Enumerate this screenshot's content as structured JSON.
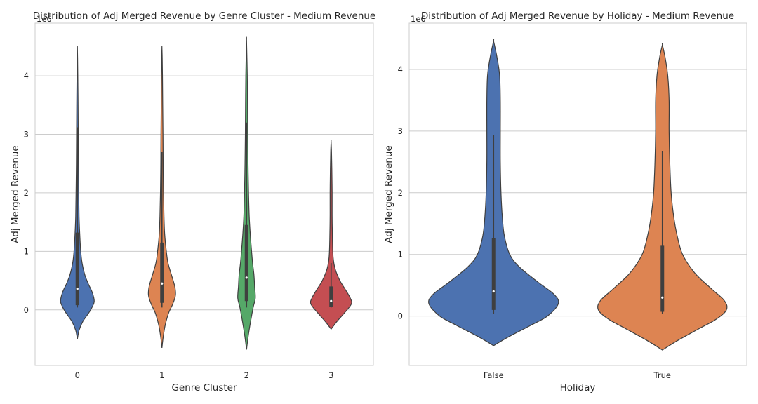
{
  "chart_data": [
    {
      "type": "violin",
      "title": "Distribution of Adj Merged Revenue by Genre Cluster - Medium Revenue",
      "xlabel": "Genre Cluster",
      "ylabel": "Adj Merged Revenue",
      "y_offset_label": "1e6",
      "ylim": [
        -0.95,
        4.9
      ],
      "yticks": [
        0,
        1,
        2,
        3,
        4
      ],
      "grid": "horizontal",
      "categories": [
        "0",
        "1",
        "2",
        "3"
      ],
      "colors": [
        "#4c72b0",
        "#dd8452",
        "#55a868",
        "#c44e52"
      ],
      "violins": [
        {
          "category": "0",
          "stats": {
            "q1": 0.08,
            "median": 0.36,
            "q3": 1.32,
            "whisker_low": 0.04,
            "whisker_high": 3.12
          },
          "density": [
            [
              -0.5,
              0
            ],
            [
              -0.35,
              0.05
            ],
            [
              -0.2,
              0.16
            ],
            [
              -0.05,
              0.34
            ],
            [
              0.05,
              0.44
            ],
            [
              0.15,
              0.5
            ],
            [
              0.3,
              0.44
            ],
            [
              0.45,
              0.32
            ],
            [
              0.6,
              0.22
            ],
            [
              0.8,
              0.14
            ],
            [
              1.0,
              0.1
            ],
            [
              1.3,
              0.07
            ],
            [
              1.6,
              0.05
            ],
            [
              2.0,
              0.04
            ],
            [
              2.5,
              0.03
            ],
            [
              3.0,
              0.025
            ],
            [
              3.5,
              0.02
            ],
            [
              4.0,
              0.012
            ],
            [
              4.3,
              0.006
            ],
            [
              4.48,
              0
            ]
          ]
        },
        {
          "category": "1",
          "stats": {
            "q1": 0.12,
            "median": 0.45,
            "q3": 1.15,
            "whisker_low": 0.04,
            "whisker_high": 2.7
          },
          "density": [
            [
              -0.65,
              0
            ],
            [
              -0.45,
              0.04
            ],
            [
              -0.25,
              0.1
            ],
            [
              -0.05,
              0.2
            ],
            [
              0.1,
              0.32
            ],
            [
              0.25,
              0.4
            ],
            [
              0.4,
              0.38
            ],
            [
              0.6,
              0.28
            ],
            [
              0.8,
              0.18
            ],
            [
              1.0,
              0.13
            ],
            [
              1.3,
              0.08
            ],
            [
              1.6,
              0.06
            ],
            [
              2.0,
              0.045
            ],
            [
              2.5,
              0.035
            ],
            [
              3.0,
              0.03
            ],
            [
              3.5,
              0.022
            ],
            [
              4.0,
              0.015
            ],
            [
              4.3,
              0.008
            ],
            [
              4.48,
              0
            ]
          ]
        },
        {
          "category": "2",
          "stats": {
            "q1": 0.15,
            "median": 0.55,
            "q3": 1.45,
            "whisker_low": 0.04,
            "whisker_high": 3.2
          },
          "density": [
            [
              -0.68,
              0
            ],
            [
              -0.45,
              0.05
            ],
            [
              -0.2,
              0.12
            ],
            [
              0.05,
              0.2
            ],
            [
              0.2,
              0.26
            ],
            [
              0.4,
              0.24
            ],
            [
              0.6,
              0.22
            ],
            [
              0.8,
              0.18
            ],
            [
              1.0,
              0.15
            ],
            [
              1.3,
              0.11
            ],
            [
              1.6,
              0.08
            ],
            [
              2.0,
              0.06
            ],
            [
              2.5,
              0.045
            ],
            [
              3.0,
              0.035
            ],
            [
              3.5,
              0.03
            ],
            [
              4.0,
              0.022
            ],
            [
              4.3,
              0.012
            ],
            [
              4.62,
              0
            ]
          ]
        },
        {
          "category": "3",
          "stats": {
            "q1": 0.05,
            "median": 0.15,
            "q3": 0.4,
            "whisker_low": 0.04,
            "whisker_high": 0.8
          },
          "density": [
            [
              -0.33,
              0
            ],
            [
              -0.2,
              0.17
            ],
            [
              -0.05,
              0.4
            ],
            [
              0.1,
              0.6
            ],
            [
              0.2,
              0.57
            ],
            [
              0.35,
              0.42
            ],
            [
              0.5,
              0.26
            ],
            [
              0.7,
              0.12
            ],
            [
              0.9,
              0.06
            ],
            [
              1.2,
              0.04
            ],
            [
              1.6,
              0.03
            ],
            [
              2.0,
              0.03
            ],
            [
              2.4,
              0.022
            ],
            [
              2.7,
              0.012
            ],
            [
              2.88,
              0
            ]
          ]
        }
      ]
    },
    {
      "type": "violin",
      "title": "Distribution of Adj Merged Revenue by Holiday - Medium Revenue",
      "xlabel": "Holiday",
      "ylabel": "Adj Merged Revenue",
      "y_offset_label": "1e6",
      "ylim": [
        -0.8,
        4.75
      ],
      "yticks": [
        0,
        1,
        2,
        3,
        4
      ],
      "grid": "horizontal",
      "categories": [
        "False",
        "True"
      ],
      "colors": [
        "#4c72b0",
        "#dd8452"
      ],
      "violins": [
        {
          "category": "False",
          "stats": {
            "q1": 0.1,
            "median": 0.4,
            "q3": 1.27,
            "whisker_low": 0.04,
            "whisker_high": 2.93
          },
          "density": [
            [
              -0.48,
              0
            ],
            [
              -0.35,
              0.2
            ],
            [
              -0.15,
              0.55
            ],
            [
              0.0,
              0.8
            ],
            [
              0.2,
              0.96
            ],
            [
              0.35,
              0.9
            ],
            [
              0.55,
              0.66
            ],
            [
              0.8,
              0.38
            ],
            [
              1.0,
              0.24
            ],
            [
              1.3,
              0.16
            ],
            [
              1.6,
              0.13
            ],
            [
              2.0,
              0.11
            ],
            [
              2.5,
              0.1
            ],
            [
              3.0,
              0.1
            ],
            [
              3.5,
              0.1
            ],
            [
              3.9,
              0.09
            ],
            [
              4.2,
              0.05
            ],
            [
              4.46,
              0
            ]
          ]
        },
        {
          "category": "True",
          "stats": {
            "q1": 0.07,
            "median": 0.3,
            "q3": 1.14,
            "whisker_low": 0.04,
            "whisker_high": 2.68
          },
          "density": [
            [
              -0.55,
              0
            ],
            [
              -0.4,
              0.22
            ],
            [
              -0.2,
              0.55
            ],
            [
              -0.05,
              0.8
            ],
            [
              0.1,
              0.95
            ],
            [
              0.25,
              0.92
            ],
            [
              0.45,
              0.72
            ],
            [
              0.7,
              0.48
            ],
            [
              1.0,
              0.3
            ],
            [
              1.3,
              0.22
            ],
            [
              1.6,
              0.17
            ],
            [
              2.0,
              0.13
            ],
            [
              2.5,
              0.11
            ],
            [
              3.0,
              0.1
            ],
            [
              3.5,
              0.1
            ],
            [
              3.9,
              0.08
            ],
            [
              4.2,
              0.04
            ],
            [
              4.4,
              0
            ]
          ]
        }
      ]
    }
  ]
}
